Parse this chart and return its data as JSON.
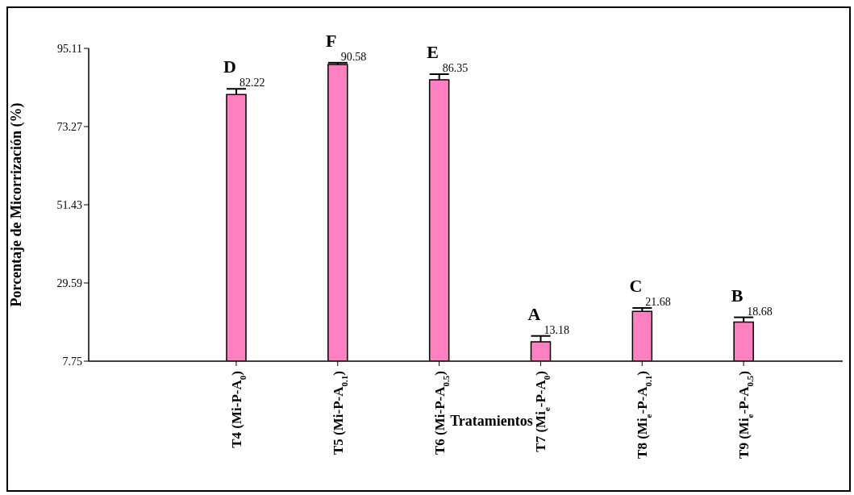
{
  "chart_data": {
    "type": "bar",
    "xlabel": "Tratamientos",
    "ylabel": "Porcentaje de Micorrización (%)",
    "categories": [
      "T4 (Mi-P-A$_{0}$)",
      "T5 (Mi-P-A$_{0.1}$)",
      "T6 (Mi-P-A$_{0.5}$)",
      "T7 (Mi$_{e}$-P-A$_{0}$)",
      "T8 (Mi$_{e}$-P-A$_{0.1}$)",
      "T9 (Mi$_{e}$-P-A$_{0.5}$)"
    ],
    "values": [
      82.22,
      90.58,
      86.35,
      13.18,
      21.68,
      18.68
    ],
    "errors": [
      [
        82.22,
        83.8
      ],
      [
        90.58,
        91.1
      ],
      [
        86.35,
        87.9
      ],
      [
        13.18,
        14.8
      ],
      [
        21.68,
        22.6
      ],
      [
        18.68,
        20.0
      ]
    ],
    "color": "#ff80c0",
    "data_labels": true,
    "ylim": [
      7.75,
      95.11
    ],
    "yticks": [
      7.75,
      29.59,
      51.43,
      73.27,
      95.11
    ],
    "grid": false,
    "legend": false,
    "annotations": [
      {
        "text": "D",
        "x": "T4 (Mi-P-A$_{0}$)",
        "y": 82.22
      },
      {
        "text": "F",
        "x": "T5 (Mi-P-A$_{0.1}$)",
        "y": 90.58
      },
      {
        "text": "E",
        "x": "T6 (Mi-P-A$_{0.5}$)",
        "y": 86.35
      },
      {
        "text": "A",
        "x": "T7 (Mi$_{e}$-P-A$_{0}$)",
        "y": 13.18
      },
      {
        "text": "C",
        "x": "T8 (Mi$_{e}$-P-A$_{0.1}$)",
        "y": 21.68
      },
      {
        "text": "B",
        "x": "T9 (Mi$_{e}$-P-A$_{0.5}$)",
        "y": 18.68
      }
    ]
  }
}
